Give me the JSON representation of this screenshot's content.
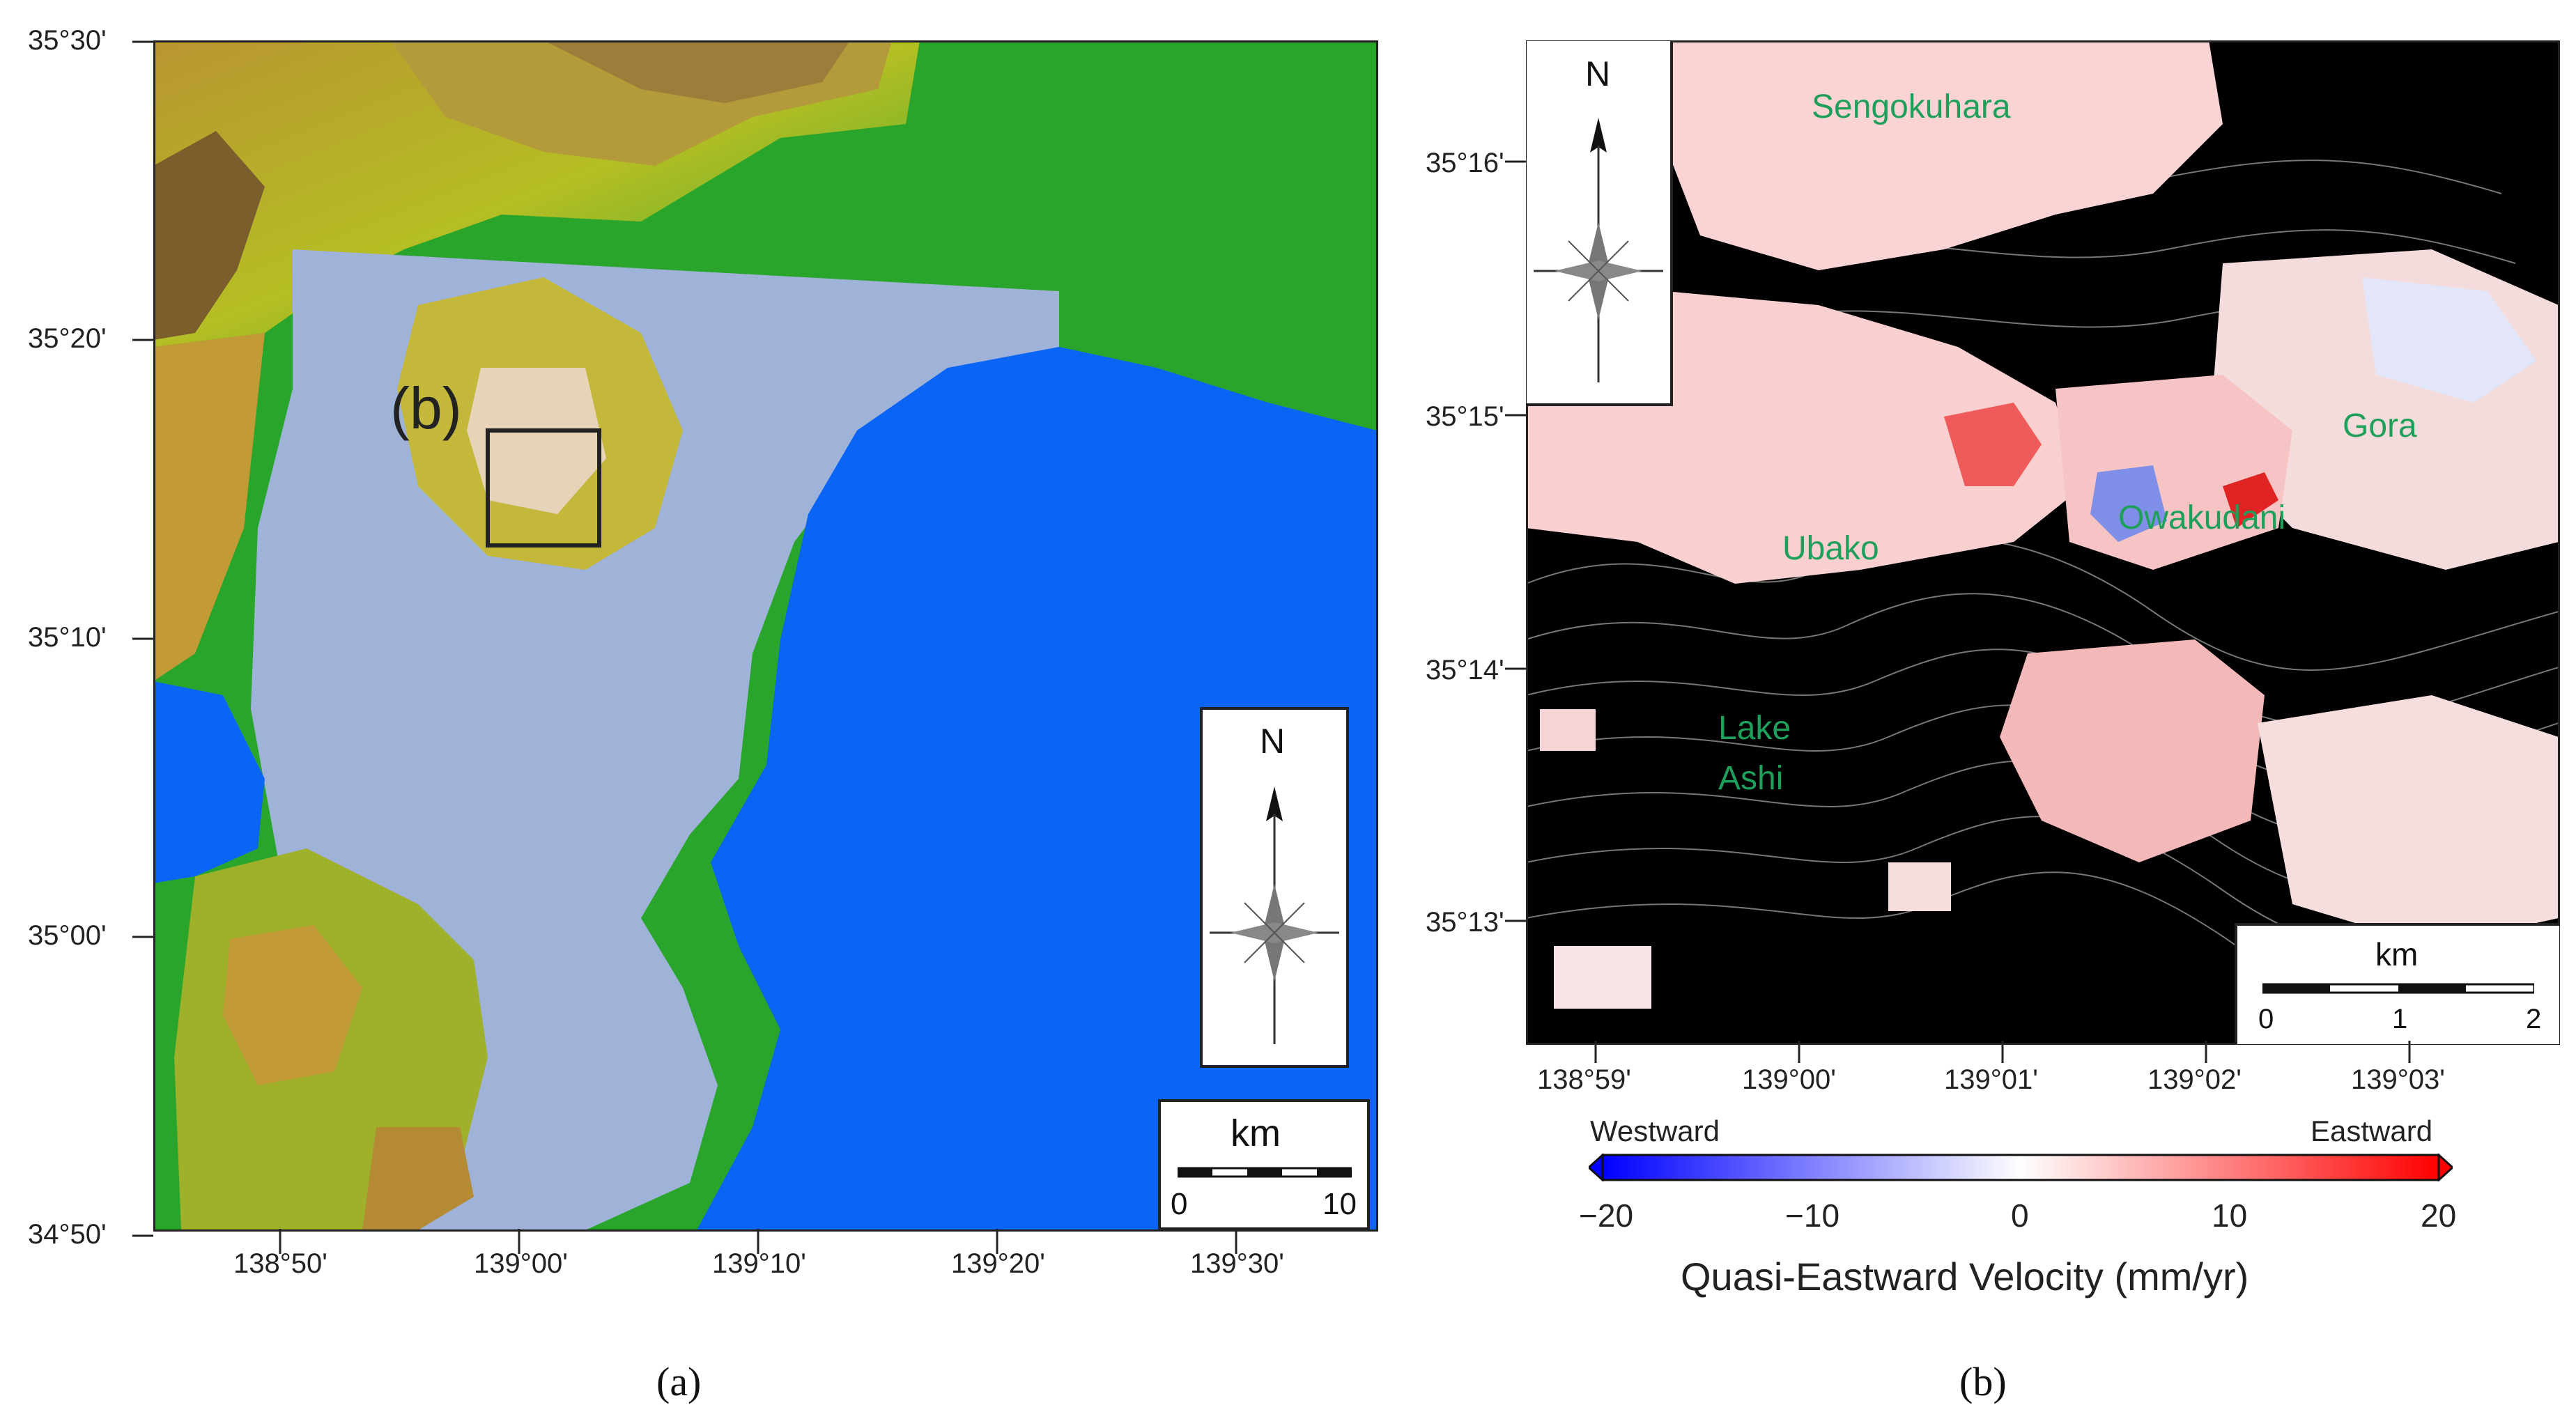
{
  "panel_a": {
    "caption": "(a)",
    "inset_label": "(b)",
    "lat_ticks": [
      "35°30'",
      "35°20'",
      "35°10'",
      "35°00'",
      "34°50'"
    ],
    "lon_ticks": [
      "138°50'",
      "139°00'",
      "139°10'",
      "139°20'",
      "139°30'"
    ],
    "north_label": "N",
    "scale_unit": "km",
    "scale_start": "0",
    "scale_end": "10",
    "colors": {
      "sea": "#0a64f5",
      "lowland": "#27a52a",
      "hills": "#b7c21e",
      "mountains": "#c9a034",
      "peaks": "#8a6a30",
      "insar": "#9aaed8"
    }
  },
  "panel_b": {
    "caption": "(b)",
    "lat_ticks": [
      "35°16'",
      "35°15'",
      "35°14'",
      "35°13'"
    ],
    "lon_ticks": [
      "138°59'",
      "139°00'",
      "139°01'",
      "139°02'",
      "139°03'"
    ],
    "places": [
      "Sengokuhara",
      "Gora",
      "Owakudani",
      "Ubako",
      "Lake",
      "Ashi"
    ],
    "north_label": "N",
    "scale_unit": "km",
    "scale_ticks": [
      "0",
      "1",
      "2"
    ],
    "place_color": "#1ea05a"
  },
  "colorbar": {
    "left_label": "Westward",
    "right_label": "Eastward",
    "tick_labels": [
      "−20",
      "−10",
      "0",
      "10",
      "20"
    ],
    "title": "Quasi-Eastward Velocity (mm/yr)",
    "range": [
      -20,
      20
    ],
    "colors": {
      "min": "#0000ff",
      "mid": "#ffffff",
      "max": "#ff0000"
    }
  }
}
